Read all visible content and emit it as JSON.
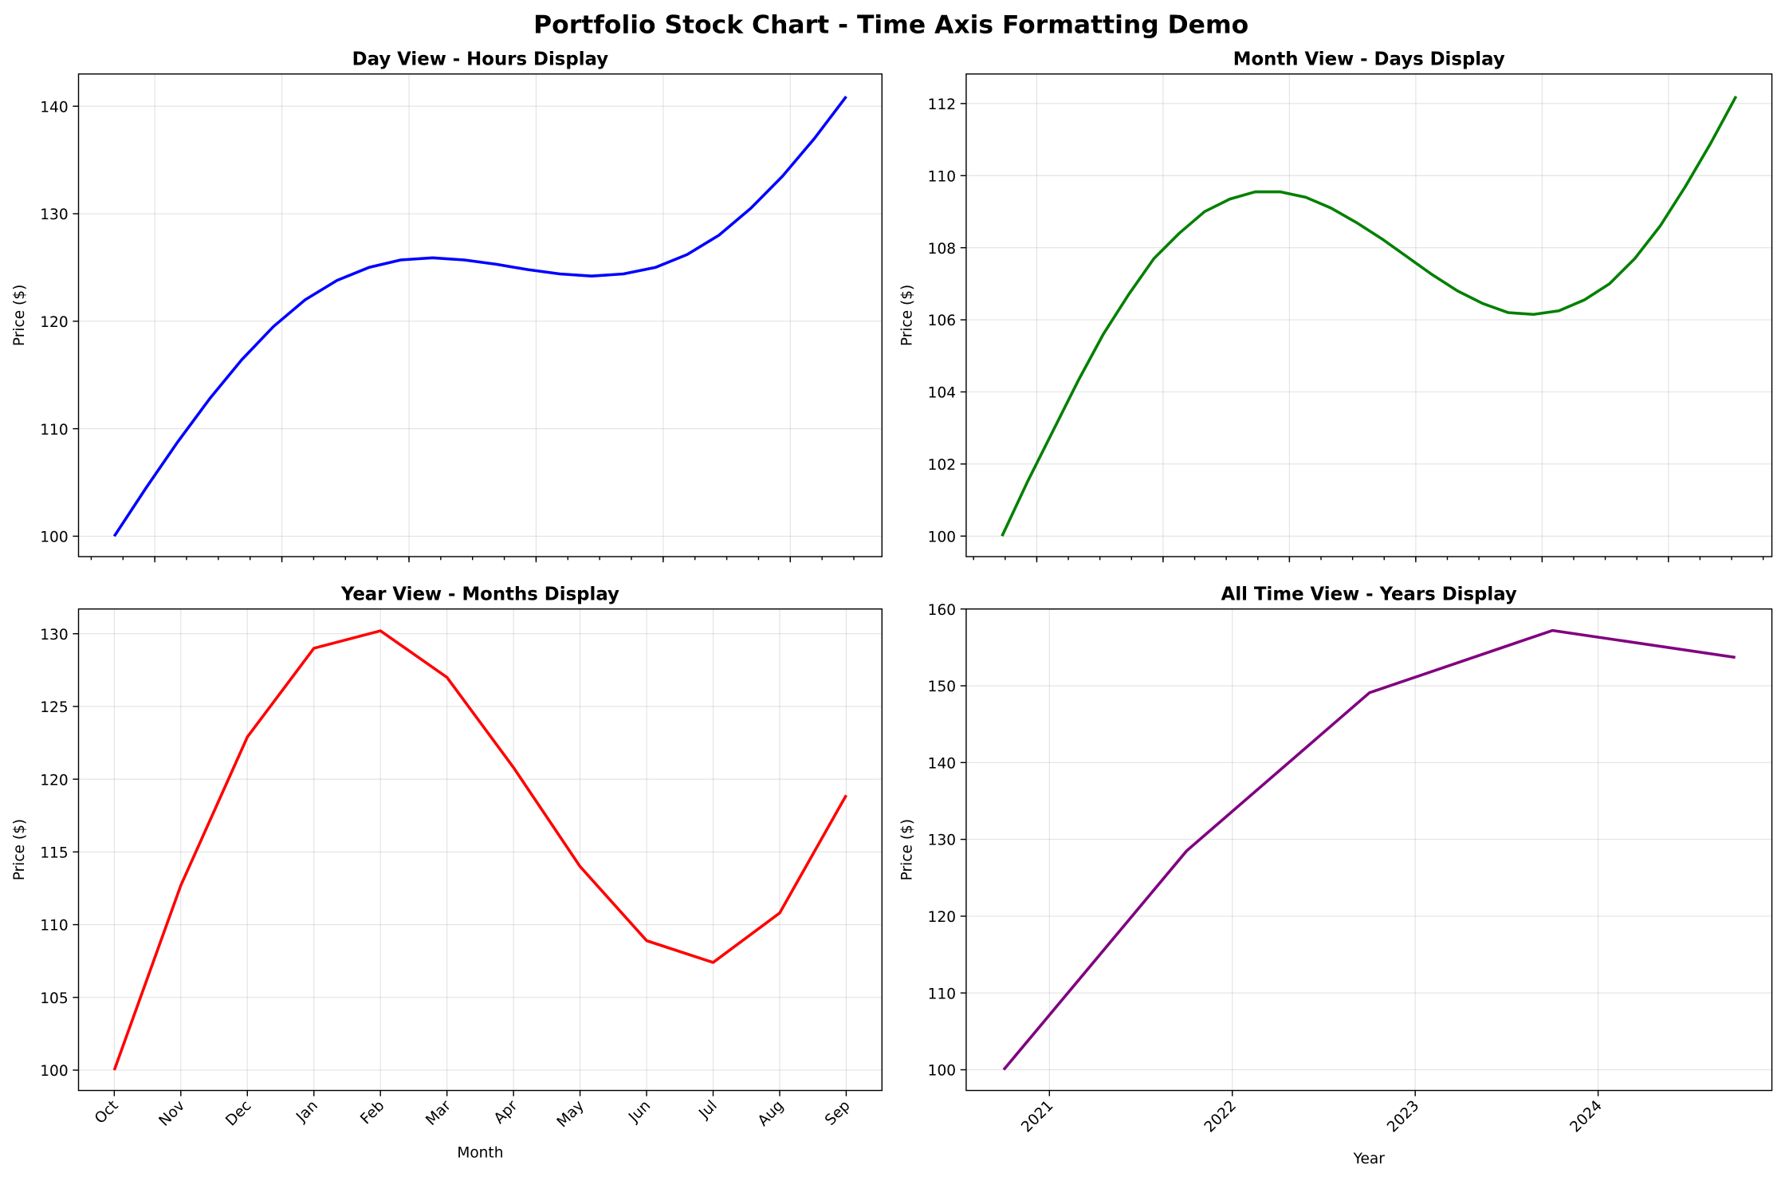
{
  "title": "Portfolio Stock Chart - Time Axis Formatting Demo",
  "chart_data": [
    {
      "type": "line",
      "title": "Day View - Hours Display",
      "ylabel": "Price ($)",
      "color": "#0000ff",
      "grid": true,
      "values": [
        100,
        104.5,
        108.8,
        112.8,
        116.4,
        119.5,
        122.0,
        123.8,
        125.0,
        125.7,
        125.9,
        125.7,
        125.3,
        124.8,
        124.4,
        124.2,
        124.4,
        125.0,
        126.2,
        128.0,
        130.5,
        133.5,
        137.0,
        140.9
      ],
      "ylim": [
        98.1,
        143.0
      ],
      "yticks": [
        100,
        110,
        120,
        130,
        140
      ]
    },
    {
      "type": "line",
      "title": "Month View - Days Display",
      "ylabel": "Price ($)",
      "color": "#008000",
      "grid": true,
      "values": [
        100,
        101.5,
        102.9,
        104.3,
        105.6,
        106.7,
        107.7,
        108.4,
        109.0,
        109.35,
        109.55,
        109.55,
        109.4,
        109.1,
        108.7,
        108.25,
        107.75,
        107.25,
        106.8,
        106.45,
        106.2,
        106.15,
        106.25,
        106.55,
        107.0,
        107.7,
        108.6,
        109.7,
        110.9,
        112.2
      ],
      "ylim": [
        99.43,
        112.82
      ],
      "yticks": [
        100,
        102,
        104,
        106,
        108,
        110,
        112
      ]
    },
    {
      "type": "line",
      "title": "Year View - Months Display",
      "ylabel": "Price ($)",
      "xlabel": "Month",
      "color": "#ff0000",
      "grid": true,
      "categories": [
        "Oct",
        "Nov",
        "Dec",
        "Jan",
        "Feb",
        "Mar",
        "Apr",
        "May",
        "Jun",
        "Jul",
        "Aug",
        "Sep"
      ],
      "values": [
        100,
        112.7,
        122.9,
        129.0,
        130.2,
        127.0,
        120.8,
        114.0,
        108.9,
        107.4,
        110.8,
        118.9
      ],
      "ylim": [
        98.6,
        131.7
      ],
      "yticks": [
        100,
        105,
        110,
        115,
        120,
        125,
        130
      ]
    },
    {
      "type": "line",
      "title": "All Time View - Years Display",
      "ylabel": "Price ($)",
      "xlabel": "Year",
      "color": "#800080",
      "grid": true,
      "x": [
        2020.75,
        2021.75,
        2022.75,
        2023.75,
        2024.75
      ],
      "values": [
        100,
        128.5,
        149.1,
        157.2,
        153.7
      ],
      "xlim": [
        2020.545,
        2024.95
      ],
      "xticks": [
        2021,
        2022,
        2023,
        2024
      ],
      "ylim": [
        97.3,
        160.0
      ],
      "yticks": [
        100,
        110,
        120,
        130,
        140,
        150,
        160
      ]
    }
  ]
}
